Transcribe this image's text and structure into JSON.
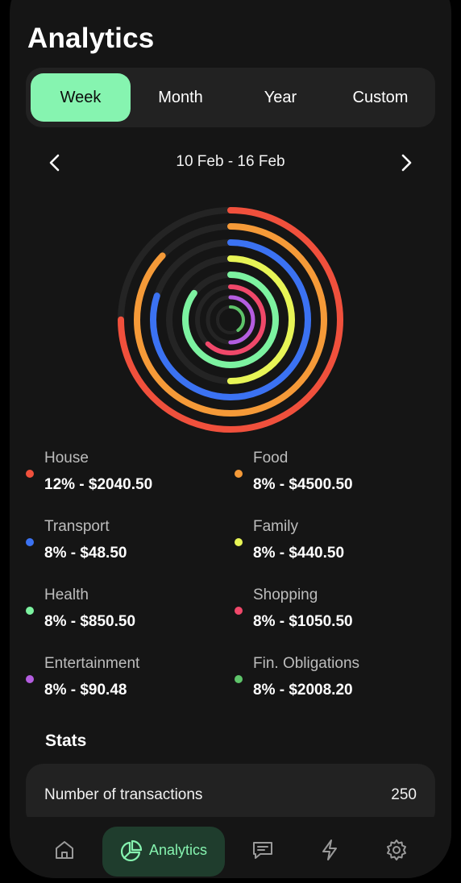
{
  "page": {
    "title": "Analytics"
  },
  "tabs": [
    {
      "label": "Week",
      "active": true
    },
    {
      "label": "Month",
      "active": false
    },
    {
      "label": "Year",
      "active": false
    },
    {
      "label": "Custom",
      "active": false
    }
  ],
  "date_range": {
    "label": "10 Feb - 16 Feb"
  },
  "categories": [
    {
      "name": "House",
      "value": "12% - $2040.50",
      "color": "#f0503c",
      "fill": 0.75
    },
    {
      "name": "Food",
      "value": "8% - $4500.50",
      "color": "#f59a38",
      "fill": 0.87
    },
    {
      "name": "Transport",
      "value": "8% - $48.50",
      "color": "#3b72f2",
      "fill": 0.8
    },
    {
      "name": "Family",
      "value": "8% - $440.50",
      "color": "#e8f556",
      "fill": 0.5
    },
    {
      "name": "Health",
      "value": "8% - $850.50",
      "color": "#7cf2a0",
      "fill": 0.85
    },
    {
      "name": "Shopping",
      "value": "8% - $1050.50",
      "color": "#f0486a",
      "fill": 0.62
    },
    {
      "name": "Entertainment",
      "value": "8% - $90.48",
      "color": "#b45de0",
      "fill": 0.5
    },
    {
      "name": "Fin. Obligations",
      "value": "8% - $2008.20",
      "color": "#5ec46a",
      "fill": 0.4
    }
  ],
  "stats": {
    "title": "Stats",
    "transactions_label": "Number of transactions",
    "transactions_value": "250"
  },
  "nav": {
    "items": [
      {
        "icon": "home-icon"
      },
      {
        "icon": "pie-chart-icon",
        "label": "Analytics",
        "active": true
      },
      {
        "icon": "message-icon"
      },
      {
        "icon": "lightning-icon"
      },
      {
        "icon": "gear-icon"
      }
    ],
    "active_label": "Analytics",
    "accent": "#86f4b0"
  }
}
